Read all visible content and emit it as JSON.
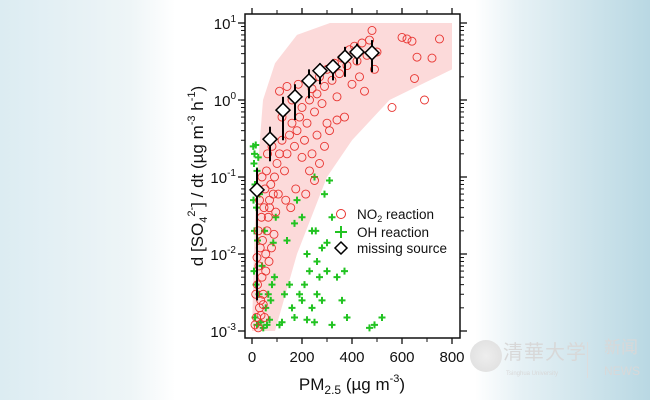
{
  "chart_data": {
    "type": "scatter",
    "xlabel": "PM2.5 (µg m-3)",
    "xlabel_parts": {
      "main": "PM",
      "sub": "2.5",
      "unit_open": " (µg m",
      "sup": "-3",
      "unit_close": ")"
    },
    "ylabel_parts": {
      "a": "d [SO",
      "sub": "4",
      "sup": "2-",
      "b": "] / dt  (µg m",
      "sup2": "-3",
      "c": " h",
      "sup3": "-1",
      "d": ")"
    },
    "x_ticks": [
      0,
      200,
      400,
      600,
      800
    ],
    "xlim": [
      0,
      800
    ],
    "y_scale": "log",
    "ylim": [
      0.001,
      10
    ],
    "y_ticks": [
      {
        "base": "10",
        "exp": "-3",
        "value": 0.001
      },
      {
        "base": "10",
        "exp": "-2",
        "value": 0.01
      },
      {
        "base": "10",
        "exp": "-1",
        "value": 0.1
      },
      {
        "base": "10",
        "exp": "0",
        "value": 1
      },
      {
        "base": "10",
        "exp": "1",
        "value": 10
      }
    ],
    "legend_placement": "center-right",
    "legend": [
      {
        "label": "NO",
        "sub": "2",
        "rest": " reaction",
        "marker": "circle"
      },
      {
        "label": "OH reaction",
        "marker": "plus"
      },
      {
        "label": "missing source",
        "marker": "diamond"
      }
    ],
    "colors": {
      "no2": "#e8322e",
      "oh": "#22c322",
      "missing": "#000000",
      "band": "#fcdada"
    },
    "band": {
      "upper": [
        [
          0,
          0.001
        ],
        [
          10,
          0.02
        ],
        [
          20,
          0.1
        ],
        [
          44,
          1
        ],
        [
          92,
          3
        ],
        [
          180,
          7
        ],
        [
          312,
          10
        ],
        [
          800,
          10
        ]
      ],
      "lower": [
        [
          92,
          0.001
        ],
        [
          180,
          0.01
        ],
        [
          300,
          0.1
        ],
        [
          400,
          0.3
        ],
        [
          550,
          1
        ],
        [
          800,
          2.5
        ]
      ]
    },
    "series": [
      {
        "name": "NO2 reaction",
        "points": [
          [
            12,
            0.0012
          ],
          [
            18,
            0.0015
          ],
          [
            25,
            0.0011
          ],
          [
            30,
            0.002
          ],
          [
            15,
            0.003
          ],
          [
            22,
            0.004
          ],
          [
            35,
            0.0025
          ],
          [
            40,
            0.005
          ],
          [
            28,
            0.007
          ],
          [
            45,
            0.003
          ],
          [
            50,
            0.0015
          ],
          [
            20,
            0.009
          ],
          [
            33,
            0.012
          ],
          [
            42,
            0.015
          ],
          [
            55,
            0.01
          ],
          [
            60,
            0.02
          ],
          [
            25,
            0.02
          ],
          [
            38,
            0.03
          ],
          [
            48,
            0.04
          ],
          [
            65,
            0.03
          ],
          [
            70,
            0.05
          ],
          [
            30,
            0.05
          ],
          [
            52,
            0.07
          ],
          [
            75,
            0.08
          ],
          [
            85,
            0.06
          ],
          [
            40,
            0.1
          ],
          [
            58,
            0.12
          ],
          [
            90,
            0.1
          ],
          [
            100,
            0.15
          ],
          [
            62,
            0.2
          ],
          [
            80,
            0.25
          ],
          [
            110,
            0.2
          ],
          [
            120,
            0.3
          ],
          [
            70,
            0.04
          ],
          [
            95,
            0.035
          ],
          [
            105,
            0.06
          ],
          [
            88,
            0.018
          ],
          [
            78,
            0.012
          ],
          [
            68,
            0.008
          ],
          [
            55,
            0.006
          ],
          [
            45,
            0.0022
          ],
          [
            36,
            0.0016
          ],
          [
            130,
            0.12
          ],
          [
            140,
            0.2
          ],
          [
            150,
            0.35
          ],
          [
            160,
            0.5
          ],
          [
            170,
            0.25
          ],
          [
            180,
            0.4
          ],
          [
            190,
            0.6
          ],
          [
            200,
            0.8
          ],
          [
            210,
            0.3
          ],
          [
            220,
            0.5
          ],
          [
            230,
            1.0
          ],
          [
            240,
            1.4
          ],
          [
            250,
            0.7
          ],
          [
            260,
            1.2
          ],
          [
            270,
            2.0
          ],
          [
            280,
            0.9
          ],
          [
            290,
            1.5
          ],
          [
            300,
            2.5
          ],
          [
            310,
            0.4
          ],
          [
            320,
            1.8
          ],
          [
            330,
            3.0
          ],
          [
            340,
            1.1
          ],
          [
            350,
            2.2
          ],
          [
            360,
            3.5
          ],
          [
            370,
            0.6
          ],
          [
            380,
            2.8
          ],
          [
            390,
            4.5
          ],
          [
            400,
            1.6
          ],
          [
            410,
            5.0
          ],
          [
            420,
            3.2
          ],
          [
            430,
            2.0
          ],
          [
            440,
            5.5
          ],
          [
            450,
            1.3
          ],
          [
            460,
            3.8
          ],
          [
            470,
            6.0
          ],
          [
            480,
            8.0
          ],
          [
            490,
            2.5
          ],
          [
            500,
            4.2
          ],
          [
            140,
            1.5
          ],
          [
            160,
            1.0
          ],
          [
            120,
            0.6
          ],
          [
            110,
            1.3
          ],
          [
            185,
            1.6
          ],
          [
            200,
            0.18
          ],
          [
            230,
            0.12
          ],
          [
            250,
            0.09
          ],
          [
            270,
            0.15
          ],
          [
            290,
            0.25
          ],
          [
            215,
            0.06
          ],
          [
            175,
            0.07
          ],
          [
            155,
            0.04
          ],
          [
            135,
            0.05
          ],
          [
            240,
            0.2
          ],
          [
            260,
            0.35
          ],
          [
            300,
            0.5
          ],
          [
            340,
            0.55
          ],
          [
            560,
            0.8
          ],
          [
            600,
            6.5
          ],
          [
            620,
            6.2
          ],
          [
            640,
            5.8
          ],
          [
            650,
            1.9
          ],
          [
            660,
            3.6
          ],
          [
            690,
            1.0
          ],
          [
            720,
            3.5
          ],
          [
            750,
            6.2
          ]
        ]
      },
      {
        "name": "OH reaction",
        "points": [
          [
            5,
            0.25
          ],
          [
            10,
            0.2
          ],
          [
            15,
            0.26
          ],
          [
            8,
            0.15
          ],
          [
            20,
            0.12
          ],
          [
            12,
            0.08
          ],
          [
            25,
            0.18
          ],
          [
            6,
            0.05
          ],
          [
            18,
            0.04
          ],
          [
            30,
            0.06
          ],
          [
            10,
            0.02
          ],
          [
            22,
            0.015
          ],
          [
            8,
            0.006
          ],
          [
            16,
            0.004
          ],
          [
            28,
            0.003
          ],
          [
            12,
            0.0015
          ],
          [
            20,
            0.0012
          ],
          [
            35,
            0.0013
          ],
          [
            45,
            0.0011
          ],
          [
            60,
            0.0012
          ],
          [
            70,
            0.0014
          ],
          [
            55,
            0.002
          ],
          [
            40,
            0.007
          ],
          [
            65,
            0.003
          ],
          [
            80,
            0.004
          ],
          [
            90,
            0.005
          ],
          [
            75,
            0.0025
          ],
          [
            50,
            0.02
          ],
          [
            85,
            0.014
          ],
          [
            95,
            0.03
          ],
          [
            110,
            0.0012
          ],
          [
            120,
            0.0013
          ],
          [
            130,
            0.003
          ],
          [
            150,
            0.004
          ],
          [
            160,
            0.002
          ],
          [
            170,
            0.0015
          ],
          [
            190,
            0.003
          ],
          [
            200,
            0.0025
          ],
          [
            210,
            0.004
          ],
          [
            220,
            0.0014
          ],
          [
            230,
            0.006
          ],
          [
            240,
            0.002
          ],
          [
            250,
            0.0013
          ],
          [
            260,
            0.003
          ],
          [
            270,
            0.005
          ],
          [
            280,
            0.0025
          ],
          [
            300,
            0.006
          ],
          [
            320,
            0.0012
          ],
          [
            340,
            0.005
          ],
          [
            360,
            0.0025
          ],
          [
            370,
            0.006
          ],
          [
            380,
            0.0015
          ],
          [
            470,
            0.0011
          ],
          [
            490,
            0.0012
          ],
          [
            520,
            0.0015
          ],
          [
            140,
            0.015
          ],
          [
            170,
            0.025
          ],
          [
            180,
            0.05
          ],
          [
            200,
            0.03
          ],
          [
            220,
            0.01
          ],
          [
            240,
            0.02
          ],
          [
            255,
            0.02
          ],
          [
            260,
            0.008
          ],
          [
            280,
            0.012
          ],
          [
            300,
            0.014
          ],
          [
            310,
            0.09
          ],
          [
            320,
            0.03
          ],
          [
            250,
            0.1
          ],
          [
            290,
            0.06
          ]
        ]
      },
      {
        "name": "missing source",
        "points": [
          [
            20,
            0.068,
            0.0025,
            0.13
          ],
          [
            72,
            0.31,
            0.16,
            0.45
          ],
          [
            124,
            0.74,
            0.3,
            1.1
          ],
          [
            172,
            1.1,
            0.55,
            1.6
          ],
          [
            228,
            1.77,
            1.05,
            2.5
          ],
          [
            272,
            2.4,
            1.6,
            3.0
          ],
          [
            324,
            2.7,
            1.8,
            3.2
          ],
          [
            372,
            3.6,
            2.0,
            4.9
          ],
          [
            420,
            4.2,
            2.9,
            5.4
          ],
          [
            480,
            4.1,
            2.3,
            6.0
          ]
        ]
      }
    ]
  },
  "logo": {
    "cn": "清華大学",
    "en": "Tsinghua University",
    "news_cn": "新闻",
    "news_en": "NEWS"
  }
}
